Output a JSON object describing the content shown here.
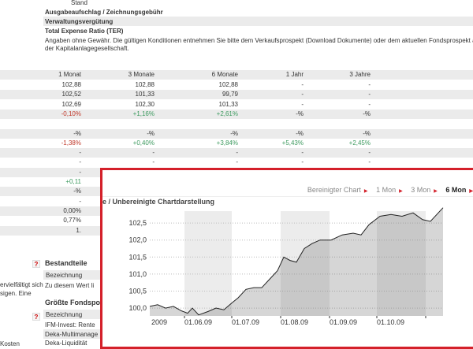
{
  "top": {
    "stand": "Stand",
    "fee_rows": [
      "Ausgabeaufschlag / Zeichnungsgebühr",
      "Verwaltungsvergütung",
      "Total Expense Ratio (TER)"
    ],
    "disclaimer_line1": "Angaben ohne Gewähr. Die gültigen Konditionen entnehmen Sie bitte dem Verkaufsprospekt (Download Dokumente) oder dem aktuellen Fondsprospekt auf",
    "disclaimer_line2": "der Kapitalanlagegesellschaft."
  },
  "perf_table": {
    "headers": [
      "1 Monat",
      "3 Monate",
      "6 Monate",
      "1 Jahr",
      "3 Jahre"
    ],
    "rows": [
      [
        "102,88",
        "102,88",
        "102,88",
        "-",
        "-"
      ],
      [
        "102,52",
        "101,33",
        "99,79",
        "-",
        "-"
      ],
      [
        "102,69",
        "102,30",
        "101,33",
        "-",
        "-"
      ],
      [
        "-0,10%",
        "+1,16%",
        "+2,61%",
        "-%",
        "-%"
      ],
      [
        "",
        "",
        "",
        "",
        ""
      ],
      [
        "-%",
        "-%",
        "-%",
        "-%",
        "-%"
      ],
      [
        "-1,38%",
        "+0,40%",
        "+3,84%",
        "+5,43%",
        "+2,45%"
      ],
      [
        "-",
        "-",
        "-",
        "-",
        "-"
      ],
      [
        "-",
        "-",
        "-",
        "-",
        "-"
      ],
      [
        "-",
        "",
        "",
        "",
        ""
      ],
      [
        "+0,11",
        "",
        "",
        "",
        ""
      ],
      [
        "-%",
        "",
        "",
        "",
        ""
      ],
      [
        "-",
        "",
        "",
        "",
        ""
      ],
      [
        "0,00%",
        "",
        "",
        "",
        ""
      ],
      [
        "0,77%",
        "",
        "",
        "",
        ""
      ],
      [
        "1.",
        "",
        "",
        "",
        ""
      ]
    ]
  },
  "bottom": {
    "left_text1": "ervielfältigt sich",
    "left_text2": "sigen. Eine",
    "left_text3": "Kosten",
    "help": "?",
    "bestandteile": "Bestandteile",
    "bez1": "Bezeichnung",
    "no_value": "Zu diesem Wert li",
    "groesste": "Größte Fondspo",
    "bez2": "Bezeichnung",
    "positions": [
      "IFM-Invest: Rente",
      "Deka-Multimanage",
      "Deka-Liquidität"
    ]
  },
  "chart_panel": {
    "nav": [
      "Bereinigter Chart",
      "1 Mon",
      "3 Mon",
      "6 Mon"
    ],
    "active": "6 Mon",
    "title": "e / Unbereinigte Chartdarstellung",
    "accent": "#d4202a"
  },
  "chart_data": {
    "type": "area",
    "ylim": [
      99.77,
      102.85
    ],
    "yticks": [
      "100,0",
      "100,5",
      "101,0",
      "101,5",
      "102,0",
      "102,5"
    ],
    "xtick_labels": [
      "2009",
      "01.06.09",
      "01.07.09",
      "01.08.09",
      "01.09.09",
      "01.10.09"
    ],
    "x": [
      "2009-05-10",
      "2009-05-15",
      "2009-05-20",
      "2009-05-25",
      "2009-05-30",
      "2009-06-03",
      "2009-06-06",
      "2009-06-10",
      "2009-06-16",
      "2009-06-21",
      "2009-06-26",
      "2009-07-01",
      "2009-07-05",
      "2009-07-10",
      "2009-07-15",
      "2009-07-20",
      "2009-07-25",
      "2009-07-30",
      "2009-08-03",
      "2009-08-07",
      "2009-08-11",
      "2009-08-16",
      "2009-08-21",
      "2009-08-26",
      "2009-09-02",
      "2009-09-09",
      "2009-09-16",
      "2009-09-21",
      "2009-09-26",
      "2009-10-03",
      "2009-10-10",
      "2009-10-17",
      "2009-10-24",
      "2009-10-30",
      "2009-11-04",
      "2009-11-12"
    ],
    "y": [
      100.05,
      100.1,
      100.0,
      100.05,
      99.92,
      99.85,
      100.0,
      99.8,
      99.9,
      100.0,
      99.95,
      100.15,
      100.3,
      100.55,
      100.6,
      100.6,
      100.85,
      101.1,
      101.5,
      101.4,
      101.35,
      101.75,
      101.9,
      102.0,
      102.0,
      102.15,
      102.2,
      102.15,
      102.45,
      102.7,
      102.75,
      102.7,
      102.8,
      102.6,
      102.55,
      102.95
    ]
  }
}
